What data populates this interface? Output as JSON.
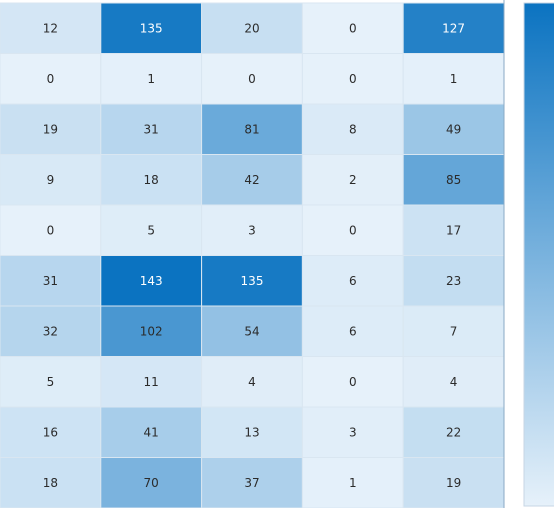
{
  "chart_data": {
    "type": "heatmap",
    "rows": [
      [
        12,
        135,
        20,
        0,
        127
      ],
      [
        0,
        1,
        0,
        0,
        1
      ],
      [
        19,
        31,
        81,
        8,
        49
      ],
      [
        9,
        18,
        42,
        2,
        85
      ],
      [
        0,
        5,
        3,
        0,
        17
      ],
      [
        31,
        143,
        135,
        6,
        23
      ],
      [
        32,
        102,
        54,
        6,
        7
      ],
      [
        5,
        11,
        4,
        0,
        4
      ],
      [
        16,
        41,
        13,
        3,
        22
      ],
      [
        18,
        70,
        37,
        1,
        19
      ]
    ],
    "value_range": [
      0,
      143
    ],
    "colorscale": {
      "low": "#e6f1fa",
      "high": "#0b73c1"
    },
    "cell_labels": true,
    "colorbar": true,
    "title": "",
    "xlabel": "",
    "ylabel": ""
  }
}
